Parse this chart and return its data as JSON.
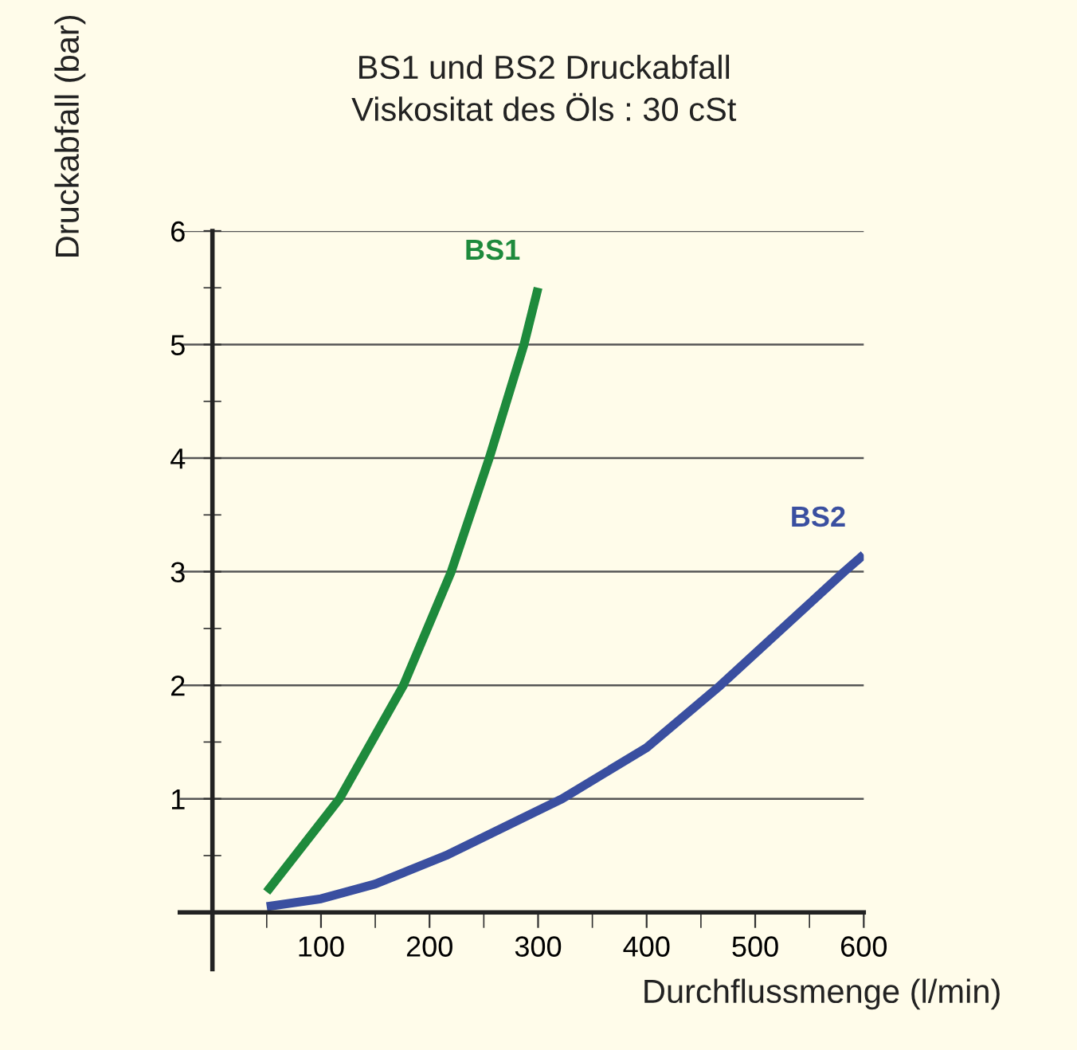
{
  "chart_data": {
    "type": "line",
    "title": "BS1 und BS2 Druckabfall",
    "subtitle": "Viskositat des Öls : 30 cSt",
    "xlabel": "Durchflussmenge (l/min)",
    "ylabel": "Druckabfall (bar)",
    "series": [
      {
        "name": "BS1",
        "color": "#1e8a3c",
        "x": [
          50,
          117,
          176,
          220,
          255,
          287,
          300
        ],
        "values": [
          0.18,
          1,
          2,
          3,
          4,
          5,
          5.5
        ]
      },
      {
        "name": "BS2",
        "color": "#3a4fa0",
        "x": [
          50,
          100,
          150,
          215,
          322,
          400,
          468,
          582,
          600
        ],
        "values": [
          0.05,
          0.12,
          0.25,
          0.5,
          1,
          1.45,
          2,
          3,
          3.15
        ]
      }
    ],
    "xlim": [
      -30,
      600
    ],
    "ylim": [
      -0.5,
      6
    ],
    "xticks": [
      {
        "value": 50,
        "label": null
      },
      100,
      {
        "value": 150,
        "label": null
      },
      200,
      {
        "value": 250,
        "label": null
      },
      300,
      {
        "value": 350,
        "label": null
      },
      400,
      {
        "value": 450,
        "label": null
      },
      500,
      {
        "value": 550,
        "label": null
      },
      600
    ],
    "yticks": [
      {
        "value": 0.5,
        "label": null
      },
      1,
      {
        "value": 1.5,
        "label": null
      },
      2,
      {
        "value": 2.5,
        "label": null
      },
      3,
      {
        "value": 3.5,
        "label": null
      },
      4,
      {
        "value": 4.5,
        "label": null
      },
      5,
      {
        "value": 5.5,
        "label": null
      },
      6
    ],
    "grid": "y",
    "legend": false,
    "marker": "none",
    "line_style": "solid"
  }
}
